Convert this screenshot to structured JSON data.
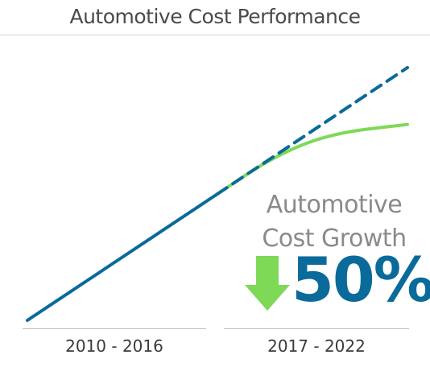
{
  "chart_data": {
    "type": "line",
    "title": "Automotive Cost Performance",
    "categories": [
      "2010 - 2016",
      "2017 - 2022"
    ],
    "series": [
      {
        "key": "historical",
        "values": [
          [
            0,
            0
          ],
          [
            1,
            1
          ]
        ],
        "color": "#0a6a9a",
        "style": "solid"
      },
      {
        "key": "projected",
        "values": [
          [
            1,
            1
          ],
          [
            2,
            2
          ]
        ],
        "color": "#0a6a9a",
        "style": "dashed"
      },
      {
        "key": "actual",
        "values": [
          [
            1,
            1
          ],
          [
            1.3,
            1.3
          ],
          [
            1.6,
            1.48
          ],
          [
            2,
            1.55
          ]
        ],
        "color": "#7ed957",
        "style": "solid"
      }
    ],
    "annotation": {
      "line1": "Automotive",
      "line2": "Cost Growth",
      "value": "50%",
      "direction": "down",
      "arrow_color": "#7ed957",
      "value_color": "#0a6a9a"
    },
    "grid": false,
    "legend": "none"
  }
}
